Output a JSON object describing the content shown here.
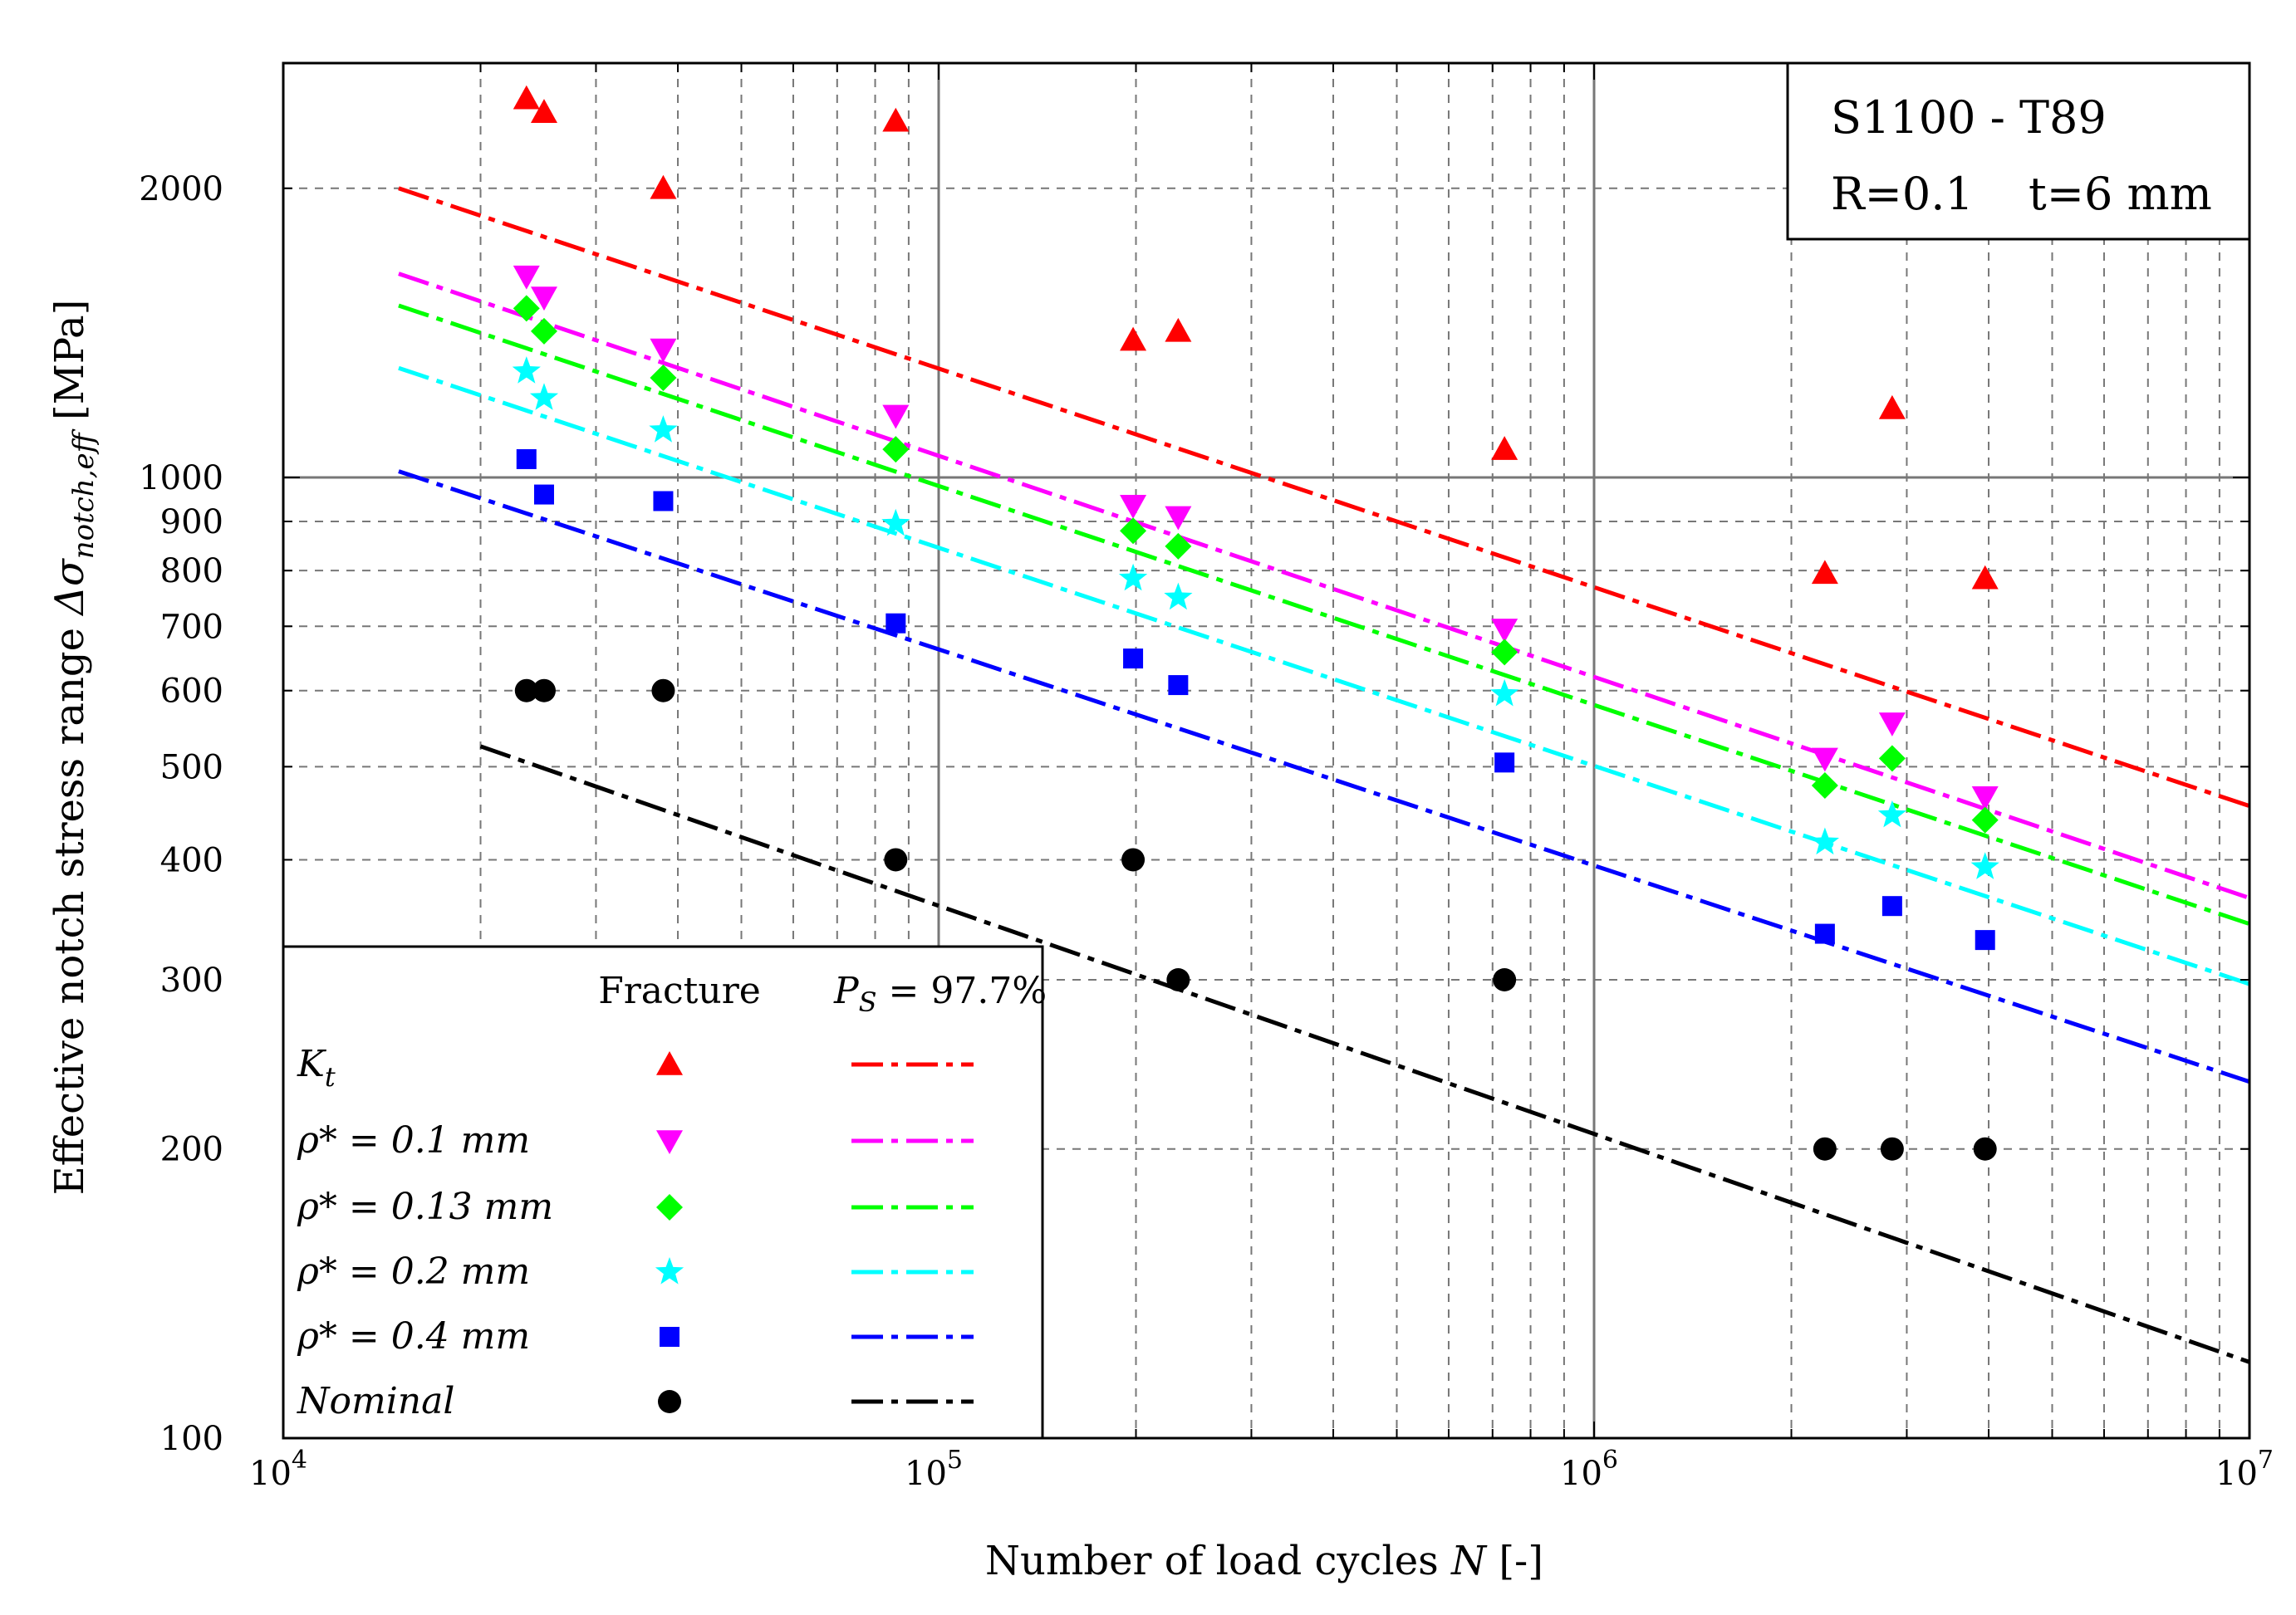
{
  "chart_data": {
    "type": "scatter",
    "xscale": "log",
    "yscale": "log",
    "xlim": [
      10000,
      10000000
    ],
    "ylim": [
      100,
      2700
    ],
    "xlabel": "Number of load cycles N [-]",
    "xlabel_main": "Number of load cycles ",
    "xlabel_var": "N",
    "xlabel_unit": " [-]",
    "ylabel": "Effective notch stress range Δσnotch,eff [MPa]",
    "ylabel_main": "Effective notch stress range ",
    "ylabel_sym": "Δσ",
    "ylabel_sub": "notch,eff",
    "ylabel_unit": " [MPa]",
    "xticks": [
      {
        "value": 10000,
        "base": "10",
        "exp": "4"
      },
      {
        "value": 100000,
        "base": "10",
        "exp": "5"
      },
      {
        "value": 1000000,
        "base": "10",
        "exp": "6"
      },
      {
        "value": 10000000,
        "base": "10",
        "exp": "7"
      }
    ],
    "yticks": [
      {
        "value": 100,
        "label": "100"
      },
      {
        "value": 200,
        "label": "200"
      },
      {
        "value": 300,
        "label": "300"
      },
      {
        "value": 400,
        "label": "400"
      },
      {
        "value": 500,
        "label": "500"
      },
      {
        "value": 600,
        "label": "600"
      },
      {
        "value": 700,
        "label": "700"
      },
      {
        "value": 800,
        "label": "800"
      },
      {
        "value": 900,
        "label": "900"
      },
      {
        "value": 1000,
        "label": "1000"
      },
      {
        "value": 2000,
        "label": "2000"
      }
    ],
    "annotation": {
      "line1": "S1100 - T89",
      "line2a": "R=0.1",
      "line2b": "t=6 mm"
    },
    "legend": {
      "position": "bottom-left",
      "header_fracture": "Fracture",
      "header_ps_sym": "P",
      "header_ps_sub": "S",
      "header_ps_val": " = 97.7%"
    },
    "series": [
      {
        "name": "Kt",
        "label_main": "K",
        "label_sub": "t",
        "marker": "triangle-up",
        "color": "#ff0000",
        "points": [
          [
            23500,
            2480
          ],
          [
            25000,
            2400
          ],
          [
            38000,
            2000
          ],
          [
            86000,
            2350
          ],
          [
            198000,
            1390
          ],
          [
            232000,
            1420
          ],
          [
            730000,
            1070
          ],
          [
            2250000,
            795
          ],
          [
            2850000,
            1180
          ],
          [
            3950000,
            785
          ]
        ],
        "fit_line": [
          [
            15000,
            2000
          ],
          [
            10000000,
            455
          ]
        ]
      },
      {
        "name": "ρ* = 0.1 mm",
        "label_main": "ρ* = 0.1 mm",
        "marker": "triangle-down",
        "color": "#ff00ff",
        "points": [
          [
            23500,
            1620
          ],
          [
            25000,
            1540
          ],
          [
            38000,
            1360
          ],
          [
            86000,
            1160
          ],
          [
            198000,
            935
          ],
          [
            232000,
            910
          ],
          [
            730000,
            695
          ],
          [
            2250000,
            510
          ],
          [
            2850000,
            555
          ],
          [
            3950000,
            465
          ]
        ],
        "fit_line": [
          [
            15000,
            1630
          ],
          [
            10000000,
            365
          ]
        ]
      },
      {
        "name": "ρ* = 0.13 mm",
        "label_main": "ρ* = 0.13 mm",
        "marker": "diamond",
        "color": "#00ff00",
        "points": [
          [
            23500,
            1500
          ],
          [
            25000,
            1420
          ],
          [
            38000,
            1270
          ],
          [
            86000,
            1070
          ],
          [
            198000,
            880
          ],
          [
            232000,
            848
          ],
          [
            730000,
            658
          ],
          [
            2250000,
            478
          ],
          [
            2850000,
            510
          ],
          [
            3950000,
            440
          ]
        ],
        "fit_line": [
          [
            15000,
            1510
          ],
          [
            10000000,
            343
          ]
        ]
      },
      {
        "name": "ρ* = 0.2 mm",
        "label_main": "ρ* = 0.2 mm",
        "marker": "star",
        "color": "#00ffff",
        "points": [
          [
            23500,
            1290
          ],
          [
            25000,
            1210
          ],
          [
            38000,
            1120
          ],
          [
            86000,
            895
          ],
          [
            198000,
            785
          ],
          [
            232000,
            750
          ],
          [
            730000,
            595
          ],
          [
            2250000,
            417
          ],
          [
            2850000,
            445
          ],
          [
            3950000,
            393
          ]
        ],
        "fit_line": [
          [
            15000,
            1300
          ],
          [
            10000000,
            297
          ]
        ]
      },
      {
        "name": "ρ* = 0.4 mm",
        "label_main": "ρ* = 0.4 mm",
        "marker": "square",
        "color": "#0000ff",
        "points": [
          [
            23500,
            1045
          ],
          [
            25000,
            960
          ],
          [
            38000,
            945
          ],
          [
            86000,
            705
          ],
          [
            198000,
            648
          ],
          [
            232000,
            608
          ],
          [
            730000,
            505
          ],
          [
            2250000,
            335
          ],
          [
            2850000,
            358
          ],
          [
            3950000,
            330
          ]
        ],
        "fit_line": [
          [
            15000,
            1015
          ],
          [
            10000000,
            235
          ]
        ]
      },
      {
        "name": "Nominal",
        "label_main": "Nominal",
        "marker": "circle",
        "color": "#000000",
        "points": [
          [
            23500,
            600
          ],
          [
            25000,
            600
          ],
          [
            38000,
            600
          ],
          [
            86000,
            400
          ],
          [
            198000,
            400
          ],
          [
            232000,
            300
          ],
          [
            730000,
            300
          ],
          [
            2250000,
            200
          ],
          [
            2850000,
            200
          ],
          [
            3950000,
            200
          ]
        ],
        "fit_line": [
          [
            20000,
            525
          ],
          [
            10000000,
            120
          ]
        ]
      }
    ]
  }
}
